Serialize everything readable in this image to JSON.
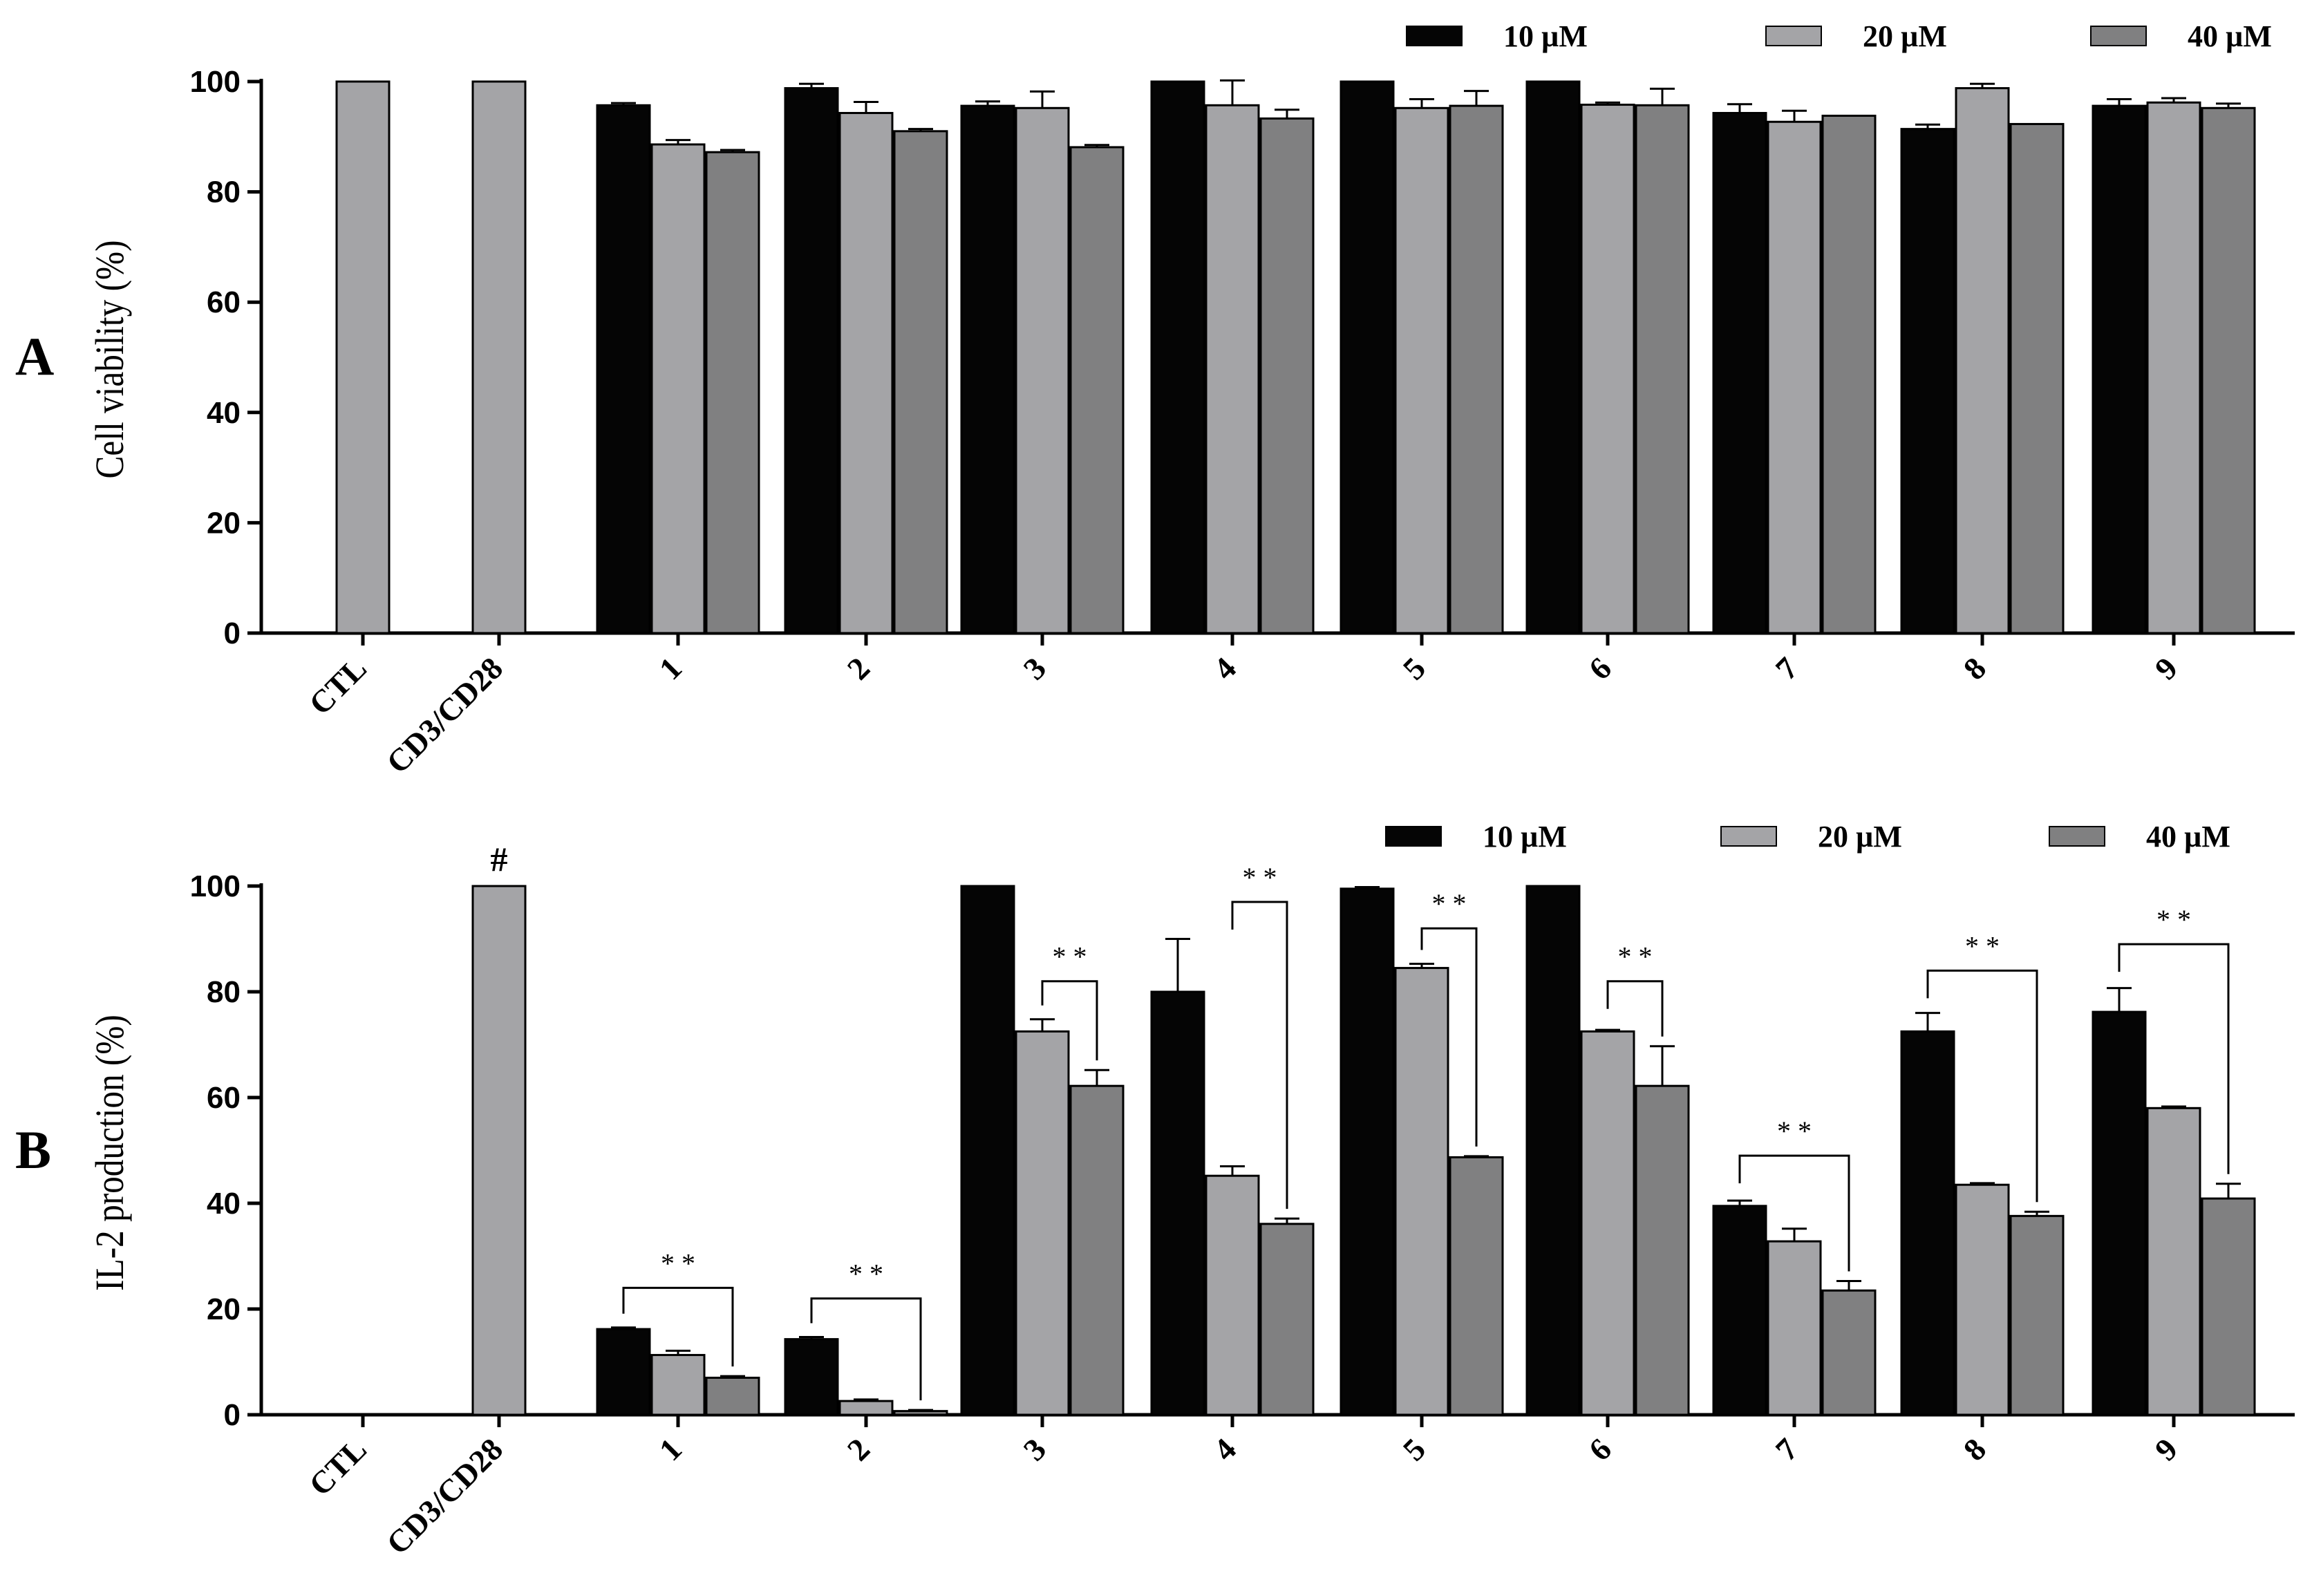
{
  "figure": {
    "colors": {
      "10 µM": "#050505",
      "20 µM": "#a4a4a7",
      "40 µM": "#808081",
      "control": "#a4a4a7",
      "axis": "#000000"
    }
  },
  "chart_data": [
    {
      "type": "bar",
      "panel_label": "A",
      "title": "",
      "xlabel": "",
      "ylabel": "Cell viability (%)",
      "ylim": [
        0,
        100
      ],
      "yticks": [
        0,
        20,
        40,
        60,
        80,
        100
      ],
      "legend": {
        "position": "top-right",
        "entries": [
          "10 µM",
          "20 µM",
          "40 µM"
        ]
      },
      "categories": [
        "CTL",
        "CD3/CD28",
        "1",
        "2",
        "3",
        "4",
        "5",
        "6",
        "7",
        "8",
        "9"
      ],
      "control_values": [
        100,
        100
      ],
      "series": [
        {
          "name": "10 µM",
          "values": [
            null,
            null,
            95.7,
            98.8,
            95.6,
            100,
            100,
            100,
            94.3,
            91.4,
            95.6
          ],
          "errors": [
            0,
            0,
            0.4,
            0.8,
            0.8,
            0,
            0,
            0,
            1.6,
            0.8,
            1.2
          ]
        },
        {
          "name": "20 µM",
          "values": [
            null,
            null,
            88.6,
            94.3,
            95.2,
            95.7,
            95.2,
            95.8,
            92.7,
            98.8,
            96.2
          ],
          "errors": [
            0,
            0,
            0.8,
            2.0,
            3.0,
            4.5,
            1.6,
            0.4,
            2.0,
            0.8,
            0.8
          ]
        },
        {
          "name": "40 µM",
          "values": [
            null,
            null,
            87.2,
            91.0,
            88.1,
            93.3,
            95.6,
            95.7,
            93.8,
            92.3,
            95.2
          ],
          "errors": [
            0,
            0,
            0.4,
            0.4,
            0.4,
            1.6,
            2.7,
            3.0,
            0,
            0,
            0.8
          ]
        }
      ],
      "annotations": []
    },
    {
      "type": "bar",
      "panel_label": "B",
      "title": "",
      "xlabel": "",
      "ylabel": "IL-2 production (%)",
      "ylim": [
        0,
        100
      ],
      "yticks": [
        0,
        20,
        40,
        60,
        80,
        100
      ],
      "legend": {
        "position": "top-right",
        "entries": [
          "10 µM",
          "20 µM",
          "40 µM"
        ]
      },
      "categories": [
        "CTL",
        "CD3/CD28",
        "1",
        "2",
        "3",
        "4",
        "5",
        "6",
        "7",
        "8",
        "9"
      ],
      "control_values": [
        0,
        100
      ],
      "control_marker": "#",
      "series": [
        {
          "name": "10 µM",
          "values": [
            null,
            null,
            16.2,
            14.3,
            100,
            80.0,
            99.5,
            100,
            39.5,
            72.5,
            76.2
          ],
          "errors": [
            0,
            0,
            0.3,
            0.4,
            0,
            10.0,
            0.3,
            0,
            1.0,
            3.5,
            4.5
          ]
        },
        {
          "name": "20 µM",
          "values": [
            null,
            null,
            11.3,
            2.6,
            72.5,
            45.2,
            84.5,
            72.5,
            32.8,
            43.5,
            58.0
          ],
          "errors": [
            0,
            0,
            0.8,
            0.3,
            2.3,
            1.8,
            0.8,
            0.3,
            2.4,
            0.3,
            0.3
          ]
        },
        {
          "name": "40 µM",
          "values": [
            null,
            null,
            7.0,
            0.7,
            62.2,
            36.1,
            48.7,
            62.2,
            23.5,
            37.6,
            40.9
          ],
          "errors": [
            0,
            0,
            0.3,
            0.2,
            3.0,
            1.0,
            0.2,
            7.5,
            1.8,
            0.8,
            2.8
          ]
        }
      ],
      "annotations": [
        {
          "category": "1",
          "from": "10 µM",
          "to": "40 µM",
          "level": 24,
          "label": "* *"
        },
        {
          "category": "2",
          "from": "10 µM",
          "to": "40 µM",
          "level": 22,
          "label": "* *"
        },
        {
          "category": "3",
          "from": "20 µM",
          "to": "40 µM",
          "level": 82,
          "label": "* *"
        },
        {
          "category": "4",
          "from": "20 µM",
          "to": "40 µM",
          "level": 97,
          "label": "* *"
        },
        {
          "category": "5",
          "from": "20 µM",
          "to": "40 µM",
          "level": 92,
          "label": "* *"
        },
        {
          "category": "6",
          "from": "20 µM",
          "to": "40 µM",
          "level": 82,
          "label": "* *"
        },
        {
          "category": "7",
          "from": "10 µM",
          "to": "40 µM",
          "level": 49,
          "label": "* *"
        },
        {
          "category": "8",
          "from": "10 µM",
          "to": "40 µM",
          "level": 84,
          "label": "* *"
        },
        {
          "category": "9",
          "from": "10 µM",
          "to": "40 µM",
          "level": 89,
          "label": "* *"
        }
      ]
    }
  ]
}
